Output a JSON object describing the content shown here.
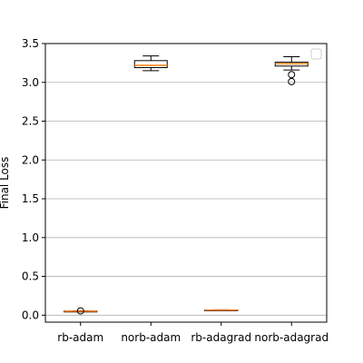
{
  "chart_data": {
    "type": "box",
    "categories": [
      "rb-adam",
      "norb-adam",
      "rb-adagrad",
      "norb-adagrad"
    ],
    "ylabel": "Final Loss",
    "xlabel": "",
    "title": "",
    "ylim": [
      -0.09,
      3.5
    ],
    "yticks": [
      "0.0",
      "0.5",
      "1.0",
      "1.5",
      "2.0",
      "2.5",
      "3.0",
      "3.5"
    ],
    "ytick_values": [
      0.0,
      0.5,
      1.0,
      1.5,
      2.0,
      2.5,
      3.0,
      3.5
    ],
    "grid": "y",
    "legend": "top-right (empty)",
    "boxes": [
      {
        "label": "rb-adam",
        "whisker_low": 0.045,
        "q1": 0.048,
        "median": 0.05,
        "q3": 0.053,
        "whisker_high": 0.055,
        "fliers": [
          0.055
        ]
      },
      {
        "label": "norb-adam",
        "whisker_low": 3.15,
        "q1": 3.19,
        "median": 3.22,
        "q3": 3.28,
        "whisker_high": 3.34,
        "fliers": []
      },
      {
        "label": "rb-adagrad",
        "whisker_low": 0.06,
        "q1": 0.063,
        "median": 0.065,
        "q3": 0.068,
        "whisker_high": 0.07,
        "fliers": []
      },
      {
        "label": "norb-adagrad",
        "whisker_low": 3.16,
        "q1": 3.21,
        "median": 3.24,
        "q3": 3.26,
        "whisker_high": 3.33,
        "fliers": [
          3.1,
          3.01
        ]
      }
    ],
    "colors": {
      "median": "#ff7f0e",
      "box": "#000000",
      "grid": "#b0b0b0"
    }
  }
}
